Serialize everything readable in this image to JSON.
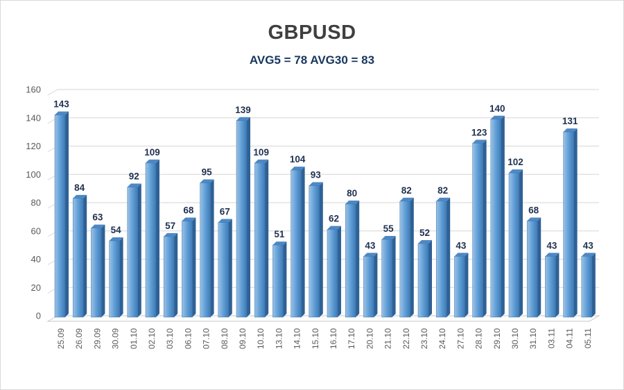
{
  "window": {
    "background": "#ffffff",
    "border_color": "#d9d9d9"
  },
  "chart_data": {
    "type": "bar",
    "style": "3d-column",
    "title": "GBPUSD",
    "subtitle": "AVG5 = 78 AVG30 = 83",
    "avg5": 78,
    "avg30": 83,
    "categories": [
      "25.09",
      "26.09",
      "29.09",
      "30.09",
      "01.10",
      "02.10",
      "03.10",
      "06.10",
      "07.10",
      "08.10",
      "09.10",
      "10.10",
      "13.10",
      "14.10",
      "15.10",
      "16.10",
      "17.10",
      "20.10",
      "21.10",
      "22.10",
      "23.10",
      "24.10",
      "27.10",
      "28.10",
      "29.10",
      "30.10",
      "31.10",
      "03.11",
      "04.11",
      "05.11"
    ],
    "values": [
      143,
      84,
      63,
      54,
      92,
      109,
      57,
      68,
      95,
      67,
      139,
      109,
      51,
      104,
      93,
      62,
      80,
      43,
      55,
      82,
      52,
      82,
      43,
      123,
      140,
      102,
      68,
      43,
      131,
      43
    ],
    "xlabel": "",
    "ylabel": "",
    "ylim": [
      0,
      160
    ],
    "yticks": [
      0,
      20,
      40,
      60,
      80,
      100,
      120,
      140,
      160
    ],
    "grid": true,
    "legend_position": "none",
    "data_labels": true,
    "colors": {
      "title_text": "#3f3f3f",
      "subtitle_text": "#17365d",
      "bar_light": "#9cc2e5",
      "bar_mid": "#5b9bd5",
      "bar_dark": "#4079b2",
      "bar_side": "#2e6195",
      "bar_top": "#4e88c4",
      "bar_edge": "#3c74ad",
      "grid_line": "#d6d6d6",
      "floor_fill": "#fdfdfd",
      "floor_edge": "#c8c8c8",
      "axis_text": "#595959",
      "value_label_text": "#1f3050"
    }
  }
}
